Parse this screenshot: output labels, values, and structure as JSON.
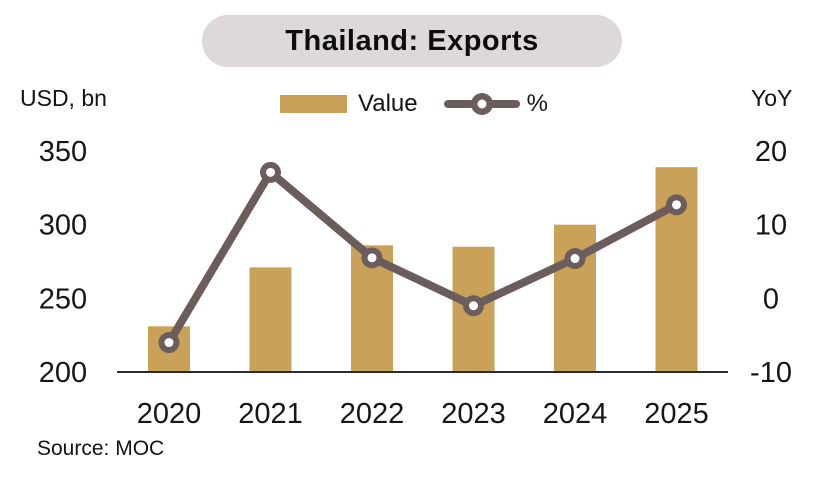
{
  "title": "Thailand: Exports",
  "left_axis_header": "USD, bn",
  "right_axis_header": "YoY",
  "legend": {
    "value_label": "Value",
    "pct_label": "%"
  },
  "source": "Source: MOC",
  "colors": {
    "bar": "#C9A159",
    "line": "#6B5D5C",
    "marker_hole": "#FFFFFF",
    "title_bg": "#DED8D8",
    "axis_line": "#2B2B2B",
    "text": "#161616"
  },
  "chart_data": {
    "type": "bar+line combo",
    "title": "Thailand: Exports",
    "categories": [
      "2020",
      "2021",
      "2022",
      "2023",
      "2024",
      "2025"
    ],
    "series": [
      {
        "name": "Value",
        "type": "bar",
        "axis": "left",
        "values": [
          231,
          271,
          286,
          285,
          300,
          339
        ]
      },
      {
        "name": "%",
        "type": "line",
        "axis": "right",
        "values": [
          -6.0,
          17.1,
          5.5,
          -1.0,
          5.4,
          12.7
        ]
      }
    ],
    "left_axis": {
      "label": "USD, bn",
      "ticks": [
        200,
        250,
        300,
        350
      ],
      "range": [
        200,
        350
      ]
    },
    "right_axis": {
      "label": "YoY",
      "ticks": [
        -10,
        0,
        10,
        20
      ],
      "range": [
        -10,
        20
      ]
    },
    "grid": false,
    "legend_position": "top-center",
    "source": "Source: MOC"
  }
}
